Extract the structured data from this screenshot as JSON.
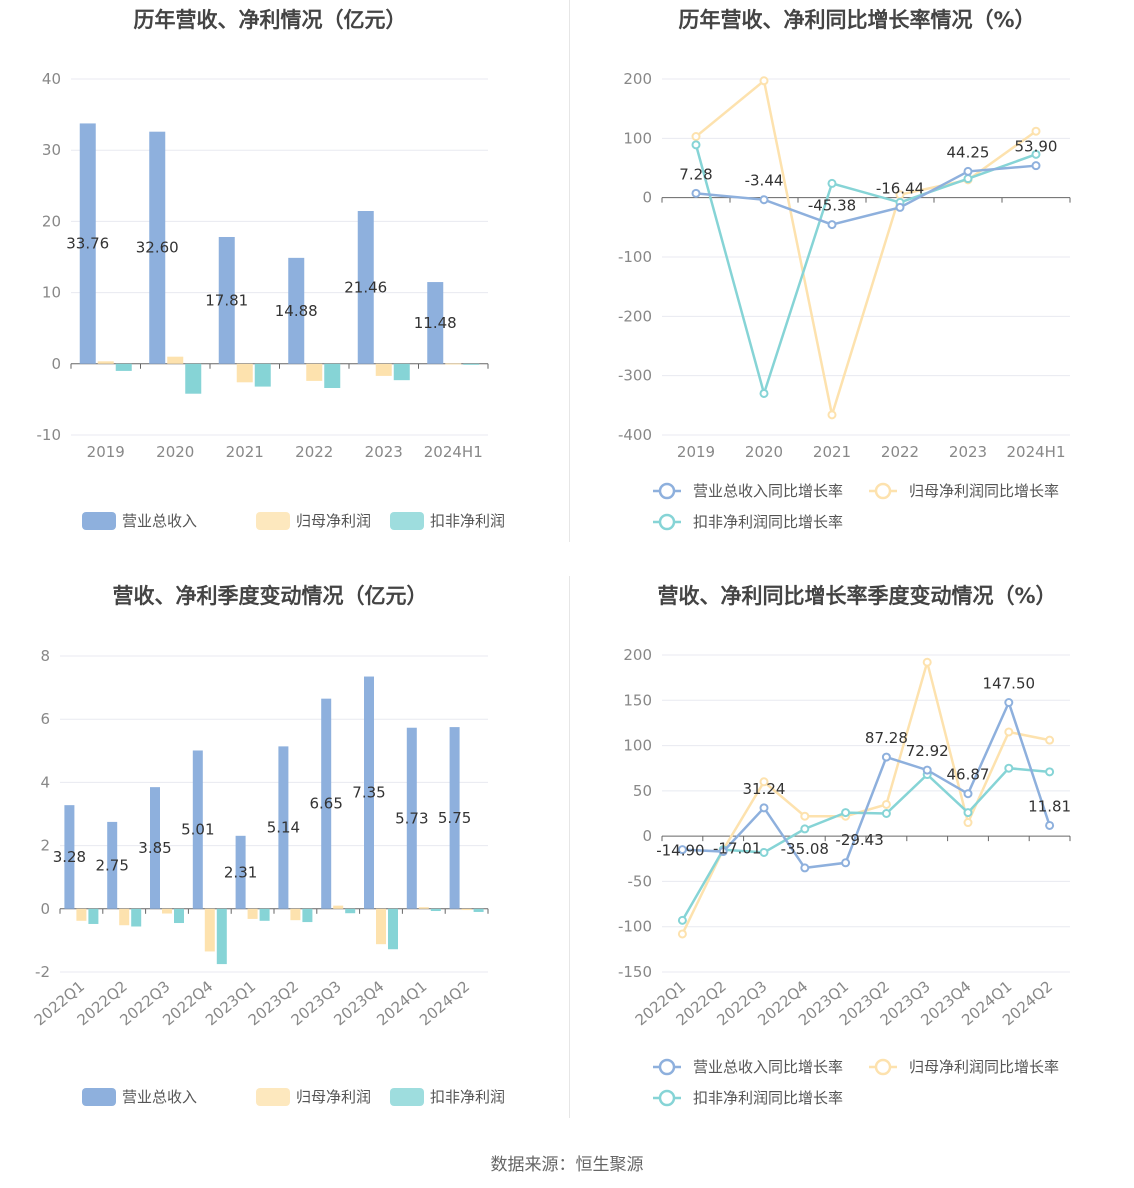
{
  "colors": {
    "revenue": "#8eb0dd",
    "net_profit": "#fde2ae",
    "deducted_profit": "#86d4d6",
    "grid": "#e8eaf0",
    "axis": "#666666"
  },
  "source": "数据来源：恒生聚源",
  "chart_data": [
    {
      "id": "annual_amount",
      "type": "bar",
      "title": "历年营收、净利情况（亿元）",
      "categories": [
        "2019",
        "2020",
        "2021",
        "2022",
        "2023",
        "2024H1"
      ],
      "yticks": [
        "40",
        "30",
        "20",
        "10",
        "0",
        "-10"
      ],
      "ylim": [
        -10,
        40
      ],
      "series": [
        {
          "name": "营业总收入",
          "values": [
            33.76,
            32.6,
            17.81,
            14.88,
            21.46,
            11.48
          ]
        },
        {
          "name": "归母净利润",
          "values": [
            0.35,
            1.0,
            -2.6,
            -2.4,
            -1.7,
            0.05
          ]
        },
        {
          "name": "扣非净利润",
          "values": [
            -1.0,
            -4.2,
            -3.2,
            -3.4,
            -2.3,
            -0.1
          ]
        }
      ],
      "data_labels": [
        "33.76",
        "32.60",
        "17.81",
        "14.88",
        "21.46",
        "11.48"
      ],
      "legend_placement": "bottom"
    },
    {
      "id": "annual_growth",
      "type": "line",
      "title": "历年营收、净利同比增长率情况（%）",
      "categories": [
        "2019",
        "2020",
        "2021",
        "2022",
        "2023",
        "2024H1"
      ],
      "yticks": [
        "200",
        "100",
        "0",
        "-100",
        "-200",
        "-300",
        "-400"
      ],
      "ylim": [
        -400,
        200
      ],
      "series": [
        {
          "name": "营业总收入同比增长率",
          "values": [
            7.28,
            -3.44,
            -45.38,
            -16.44,
            44.25,
            53.9
          ]
        },
        {
          "name": "归母净利润同比增长率",
          "values": [
            103,
            197,
            -366,
            5,
            30,
            112
          ]
        },
        {
          "name": "扣非净利润同比增长率",
          "values": [
            89,
            -330,
            24,
            -8,
            32,
            73
          ]
        }
      ],
      "data_labels": [
        "7.28",
        "-3.44",
        "-45.38",
        "-16.44",
        "44.25",
        "53.90"
      ],
      "legend_placement": "bottom"
    },
    {
      "id": "quarterly_amount",
      "type": "bar",
      "title": "营收、净利季度变动情况（亿元）",
      "categories": [
        "2022Q1",
        "2022Q2",
        "2022Q3",
        "2022Q4",
        "2023Q1",
        "2023Q2",
        "2023Q3",
        "2023Q4",
        "2024Q1",
        "2024Q2"
      ],
      "yticks": [
        "8",
        "6",
        "4",
        "2",
        "0",
        "-2"
      ],
      "ylim": [
        -2,
        8
      ],
      "series": [
        {
          "name": "营业总收入",
          "values": [
            3.28,
            2.75,
            3.85,
            5.01,
            2.31,
            5.14,
            6.65,
            7.35,
            5.73,
            5.75
          ]
        },
        {
          "name": "归母净利润",
          "values": [
            -0.38,
            -0.52,
            -0.15,
            -1.35,
            -0.32,
            -0.36,
            0.1,
            -1.12,
            0.05,
            -0.04
          ]
        },
        {
          "name": "扣非净利润",
          "values": [
            -0.48,
            -0.56,
            -0.45,
            -1.75,
            -0.38,
            -0.42,
            -0.14,
            -1.28,
            -0.07,
            -0.1
          ]
        }
      ],
      "data_labels": [
        "3.28",
        "2.75",
        "3.85",
        "5.01",
        "2.31",
        "5.14",
        "6.65",
        "7.35",
        "5.73",
        "5.75"
      ],
      "legend_placement": "bottom"
    },
    {
      "id": "quarterly_growth",
      "type": "line",
      "title": "营收、净利同比增长率季度变动情况（%）",
      "categories": [
        "2022Q1",
        "2022Q2",
        "2022Q3",
        "2022Q4",
        "2023Q1",
        "2023Q2",
        "2023Q3",
        "2023Q4",
        "2024Q1",
        "2024Q2"
      ],
      "yticks": [
        "200",
        "150",
        "100",
        "50",
        "0",
        "-50",
        "-100",
        "-150"
      ],
      "ylim": [
        -150,
        200
      ],
      "series": [
        {
          "name": "营业总收入同比增长率",
          "values": [
            -14.9,
            -17.01,
            31.24,
            -35.08,
            -29.43,
            87.28,
            72.92,
            46.87,
            147.5,
            11.81
          ]
        },
        {
          "name": "归母净利润同比增长率",
          "values": [
            -108,
            -15,
            60,
            22,
            22,
            35,
            192,
            15,
            115,
            106
          ]
        },
        {
          "name": "扣非净利润同比增长率",
          "values": [
            -93,
            -15,
            -18,
            8,
            26,
            25,
            68,
            26,
            75,
            71
          ]
        }
      ],
      "data_labels": [
        "-14.90",
        "-17.01",
        "31.24",
        "-35.08",
        "-29.43",
        "87.28",
        "72.92",
        "46.87",
        "147.50",
        "11.81"
      ],
      "legend_placement": "bottom"
    }
  ]
}
